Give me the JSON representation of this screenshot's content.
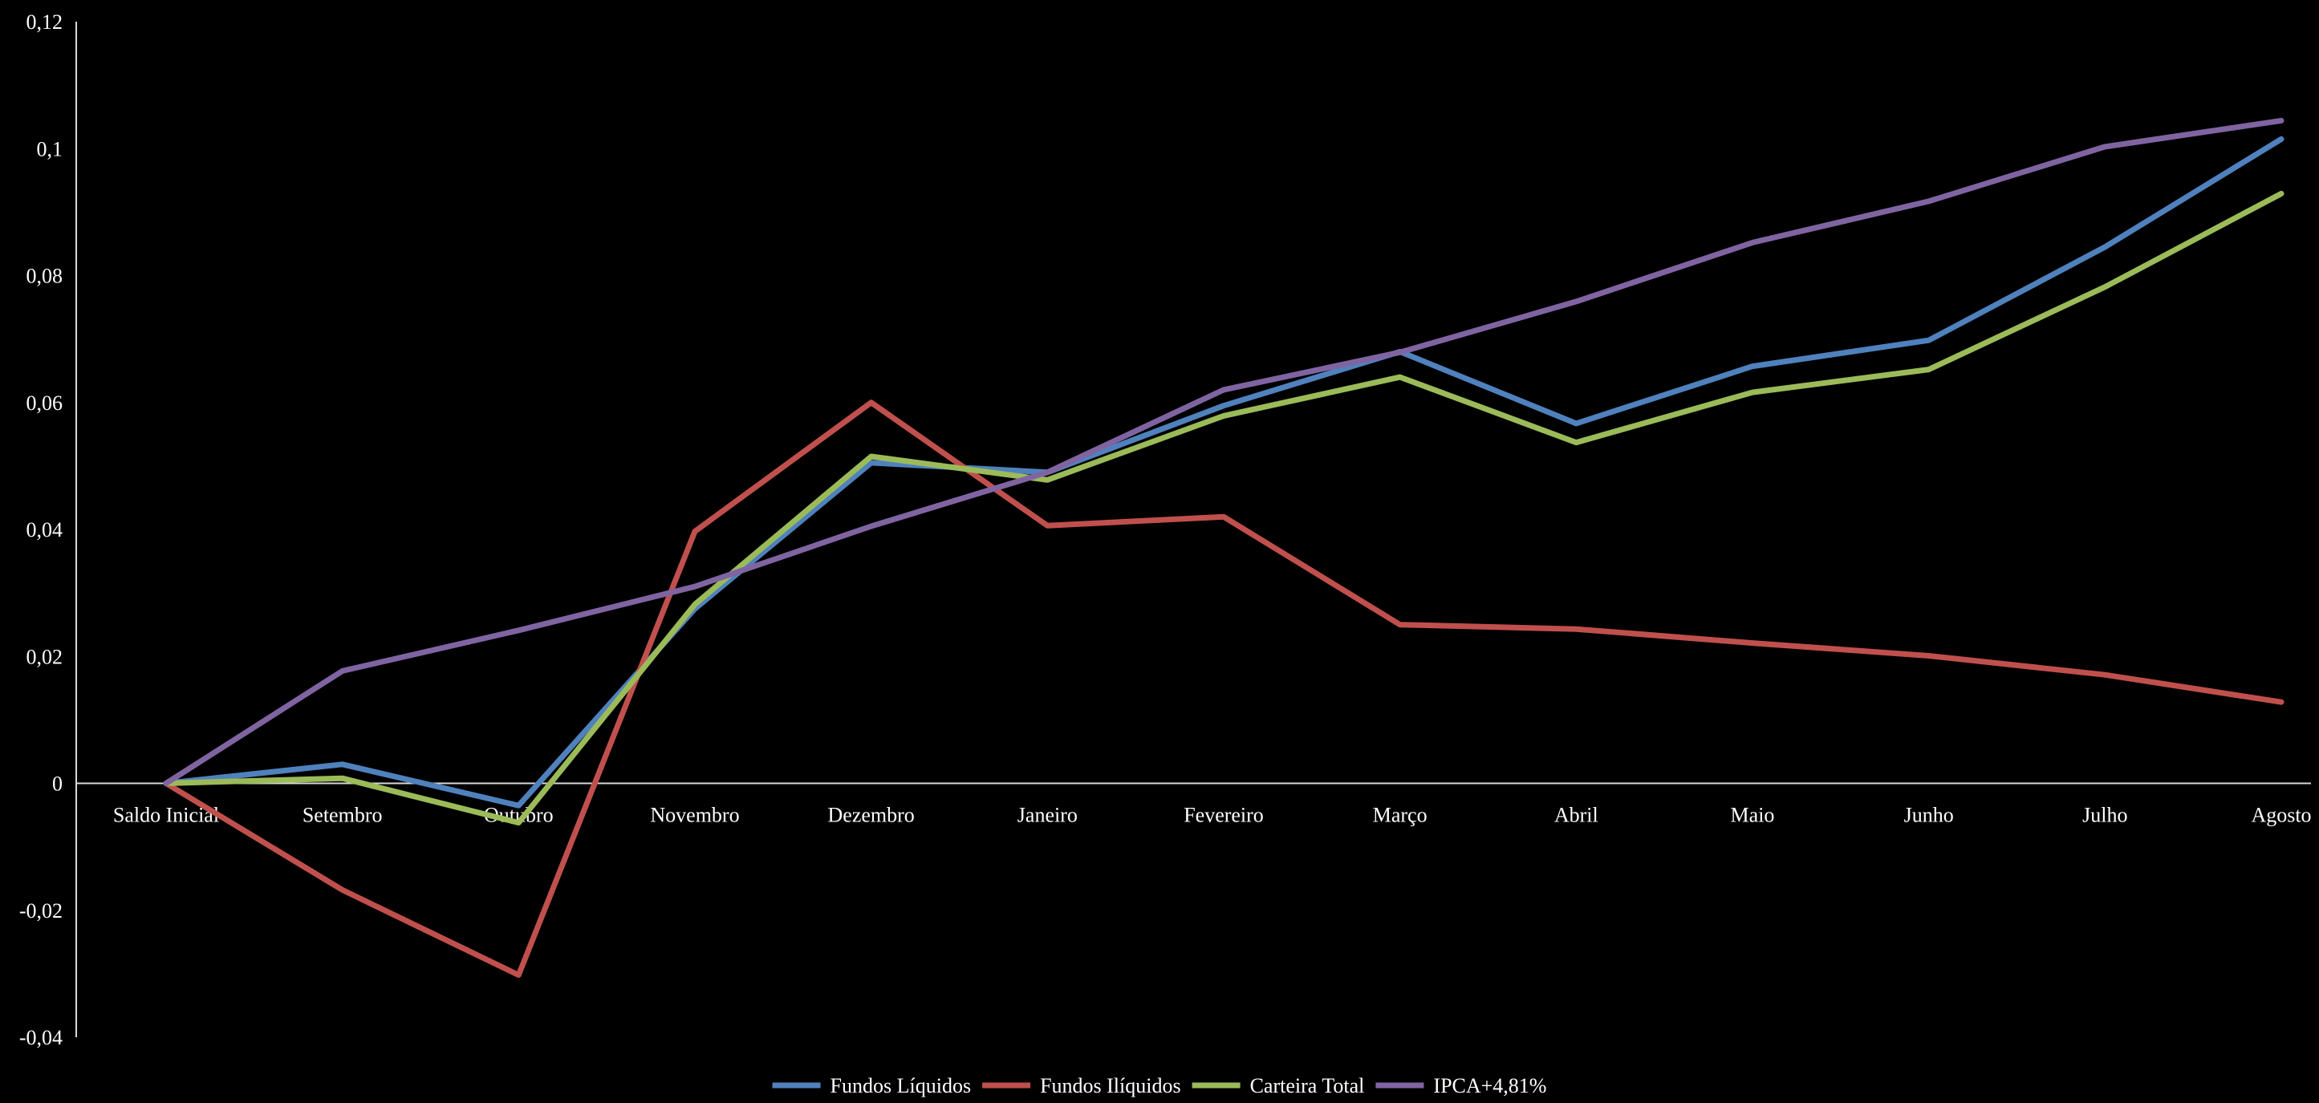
{
  "chart_data": {
    "type": "line",
    "title": "",
    "xlabel": "",
    "ylabel": "",
    "categories": [
      "Saldo Inicial",
      "Setembro",
      "Outubro",
      "Novembro",
      "Dezembro",
      "Janeiro",
      "Fevereiro",
      "Março",
      "Abril",
      "Maio",
      "Junho",
      "Julho",
      "Agosto"
    ],
    "ylim": [
      -0.04,
      0.12
    ],
    "yticks": [
      -0.04,
      -0.02,
      0,
      0.02,
      0.04,
      0.06,
      0.08,
      0.1,
      0.12
    ],
    "ytick_labels": [
      "-0,04",
      "-0,02",
      "0",
      "0,02",
      "0,04",
      "0,06",
      "0,08",
      "0,1",
      "0,12"
    ],
    "grid": false,
    "legend_position": "bottom",
    "series": [
      {
        "name": "Fundos Líquidos",
        "color": "#4F81BD",
        "values": [
          0,
          0.003,
          -0.0035,
          0.0275,
          0.0505,
          0.049,
          0.0595,
          0.068,
          0.0567,
          0.0657,
          0.0698,
          0.0845,
          0.1015
        ]
      },
      {
        "name": "Fundos Ilíquidos",
        "color": "#C0504D",
        "values": [
          0,
          -0.0168,
          -0.0302,
          0.0397,
          0.06,
          0.0406,
          0.042,
          0.025,
          0.0243,
          0.0221,
          0.0201,
          0.0171,
          0.0128
        ]
      },
      {
        "name": "Carteira Total",
        "color": "#9BBB59",
        "values": [
          0,
          0.0008,
          -0.0062,
          0.0282,
          0.0515,
          0.0478,
          0.0579,
          0.064,
          0.0537,
          0.0616,
          0.0652,
          0.0782,
          0.0929
        ]
      },
      {
        "name": "IPCA+4,81%",
        "color": "#8064A2",
        "values": [
          0,
          0.0177,
          0.0241,
          0.031,
          0.0405,
          0.049,
          0.062,
          0.0679,
          0.0759,
          0.0852,
          0.0917,
          0.1003,
          0.1044
        ]
      }
    ]
  }
}
